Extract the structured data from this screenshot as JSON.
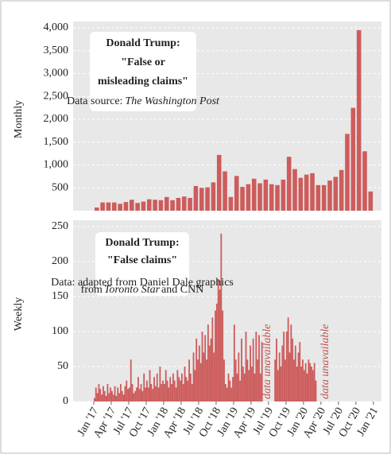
{
  "chart_data": [
    {
      "type": "bar",
      "title_lines": [
        "Donald Trump:",
        "\"False or",
        "misleading claims\""
      ],
      "source": [
        "Data source:",
        "The Washington Post"
      ],
      "ylabel": "Monthly",
      "color": "#cd5c5c",
      "x": [
        "2017-01",
        "2017-02",
        "2017-03",
        "2017-04",
        "2017-05",
        "2017-06",
        "2017-07",
        "2017-08",
        "2017-09",
        "2017-10",
        "2017-11",
        "2017-12",
        "2018-01",
        "2018-02",
        "2018-03",
        "2018-04",
        "2018-05",
        "2018-06",
        "2018-07",
        "2018-08",
        "2018-09",
        "2018-10",
        "2018-11",
        "2018-12",
        "2019-01",
        "2019-02",
        "2019-03",
        "2019-04",
        "2019-05",
        "2019-06",
        "2019-07",
        "2019-08",
        "2019-09",
        "2019-10",
        "2019-11",
        "2019-12",
        "2020-01",
        "2020-02",
        "2020-03",
        "2020-04",
        "2020-05",
        "2020-06",
        "2020-07",
        "2020-08",
        "2020-09",
        "2020-10",
        "2020-11",
        "2020-12"
      ],
      "values": [
        70,
        180,
        180,
        180,
        150,
        190,
        240,
        170,
        200,
        250,
        240,
        230,
        300,
        230,
        280,
        310,
        280,
        540,
        500,
        510,
        620,
        1220,
        860,
        300,
        760,
        520,
        580,
        700,
        600,
        680,
        580,
        560,
        680,
        1180,
        910,
        720,
        790,
        820,
        560,
        560,
        660,
        740,
        890,
        1680,
        2250,
        3950,
        1300,
        420
      ],
      "ylim": [
        0,
        4000
      ],
      "yticks": [
        500,
        {
          "value": 1000,
          "label": "1,000"
        },
        {
          "value": 1500,
          "label": "1,500"
        },
        {
          "value": 2000,
          "label": "2,000"
        },
        {
          "value": 2500,
          "label": "2,500"
        },
        {
          "value": 3000,
          "label": "3,000"
        },
        {
          "value": 3500,
          "label": "3,500"
        },
        {
          "value": 4000,
          "label": "4,000"
        }
      ],
      "grid": true
    },
    {
      "type": "weekly-bar",
      "title_lines": [
        "Donald Trump:",
        "\"False claims\""
      ],
      "source": [
        "Data: adapted from Daniel Dale graphics",
        "from",
        "Toronto Star",
        "and CNN"
      ],
      "ylabel": "Weekly",
      "color": "#cd5c5c",
      "months": [
        {
          "month": "2017-01",
          "values": [
            5,
            20,
            12,
            25
          ]
        },
        {
          "month": "2017-02",
          "values": [
            18,
            10,
            22,
            15
          ]
        },
        {
          "month": "2017-03",
          "values": [
            8,
            25,
            12,
            20
          ]
        },
        {
          "month": "2017-04",
          "values": [
            15,
            10,
            22,
            8
          ]
        },
        {
          "month": "2017-05",
          "values": [
            20,
            12,
            25,
            15
          ]
        },
        {
          "month": "2017-06",
          "values": [
            10,
            22,
            30,
            18
          ]
        },
        {
          "month": "2017-07",
          "values": [
            20,
            60,
            25,
            12
          ]
        },
        {
          "month": "2017-08",
          "values": [
            15,
            20,
            35,
            18
          ]
        },
        {
          "month": "2017-09",
          "values": [
            25,
            15,
            40,
            20
          ]
        },
        {
          "month": "2017-10",
          "values": [
            30,
            20,
            45,
            25
          ]
        },
        {
          "month": "2017-11",
          "values": [
            18,
            35,
            22,
            40
          ]
        },
        {
          "month": "2017-12",
          "values": [
            20,
            50,
            25,
            30
          ]
        },
        {
          "month": "2018-01",
          "values": [
            25,
            45,
            30,
            20
          ]
        },
        {
          "month": "2018-02",
          "values": [
            35,
            25,
            40,
            30
          ]
        },
        {
          "month": "2018-03",
          "values": [
            20,
            45,
            35,
            30
          ]
        },
        {
          "month": "2018-04",
          "values": [
            40,
            25,
            50,
            35
          ]
        },
        {
          "month": "2018-05",
          "values": [
            30,
            60,
            40,
            25
          ]
        },
        {
          "month": "2018-06",
          "values": [
            70,
            45,
            90,
            60
          ]
        },
        {
          "month": "2018-07",
          "values": [
            80,
            55,
            100,
            70
          ]
        },
        {
          "month": "2018-08",
          "values": [
            95,
            60,
            110,
            80
          ]
        },
        {
          "month": "2018-09",
          "values": [
            90,
            120,
            70,
            130
          ]
        },
        {
          "month": "2018-10",
          "values": [
            140,
            175,
            160,
            240
          ]
        },
        {
          "month": "2018-11",
          "values": [
            130,
            60,
            25,
            20
          ]
        },
        {
          "month": "2018-12",
          "values": [
            40,
            30,
            20,
            35
          ]
        },
        {
          "month": "2019-01",
          "values": [
            110,
            60,
            40,
            70
          ]
        },
        {
          "month": "2019-02",
          "values": [
            30,
            90,
            50,
            40
          ]
        },
        {
          "month": "2019-03",
          "values": [
            100,
            60,
            45,
            80
          ]
        },
        {
          "month": "2019-04",
          "values": [
            50,
            90,
            40,
            100
          ]
        },
        {
          "month": "2019-05",
          "values": [
            60,
            95,
            40,
            85
          ]
        },
        {
          "month": "2019-06",
          "values": [
            null,
            null,
            null,
            null
          ]
        },
        {
          "month": "2019-07",
          "values": [
            null,
            null,
            null,
            null
          ]
        },
        {
          "month": "2019-08",
          "values": [
            60,
            90,
            45,
            70
          ]
        },
        {
          "month": "2019-09",
          "values": [
            50,
            80,
            100,
            60
          ]
        },
        {
          "month": "2019-10",
          "values": [
            100,
            120,
            70,
            110
          ]
        },
        {
          "month": "2019-11",
          "values": [
            90,
            60,
            80,
            50
          ]
        },
        {
          "month": "2019-12",
          "values": [
            70,
            85,
            50,
            60
          ]
        },
        {
          "month": "2020-01",
          "values": [
            45,
            55,
            40,
            60
          ]
        },
        {
          "month": "2020-02",
          "values": [
            55,
            50,
            45,
            55
          ]
        },
        {
          "month": "2020-03",
          "values": [
            30,
            null,
            null,
            null
          ]
        }
      ],
      "annotations": [
        {
          "text": "data unavailable",
          "x": "2019-06"
        },
        {
          "text": "data unavailable",
          "x": "2020-04"
        }
      ],
      "ylim": [
        0,
        250
      ],
      "yticks": [
        0,
        50,
        100,
        150,
        200,
        250
      ],
      "grid": true,
      "xticks": [
        {
          "value": "2017-01",
          "label": "Jan '17"
        },
        {
          "value": "2017-04",
          "label": "Apr '17"
        },
        {
          "value": "2017-07",
          "label": "Jul '17"
        },
        {
          "value": "2017-10",
          "label": "Oct '17"
        },
        {
          "value": "2018-01",
          "label": "Jan '18"
        },
        {
          "value": "2018-04",
          "label": "Apr '18"
        },
        {
          "value": "2018-07",
          "label": "Jul '18"
        },
        {
          "value": "2018-10",
          "label": "Oct '18"
        },
        {
          "value": "2019-01",
          "label": "Jan '19"
        },
        {
          "value": "2019-04",
          "label": "Apr '19"
        },
        {
          "value": "2019-07",
          "label": "Jul '19"
        },
        {
          "value": "2019-10",
          "label": "Oct '19"
        },
        {
          "value": "2020-01",
          "label": "Jan '20"
        },
        {
          "value": "2020-04",
          "label": "Apr '20"
        },
        {
          "value": "2020-07",
          "label": "Jul '20"
        },
        {
          "value": "2020-10",
          "label": "Oct '20"
        },
        {
          "value": "2021-01",
          "label": "Jan '21"
        }
      ]
    }
  ]
}
